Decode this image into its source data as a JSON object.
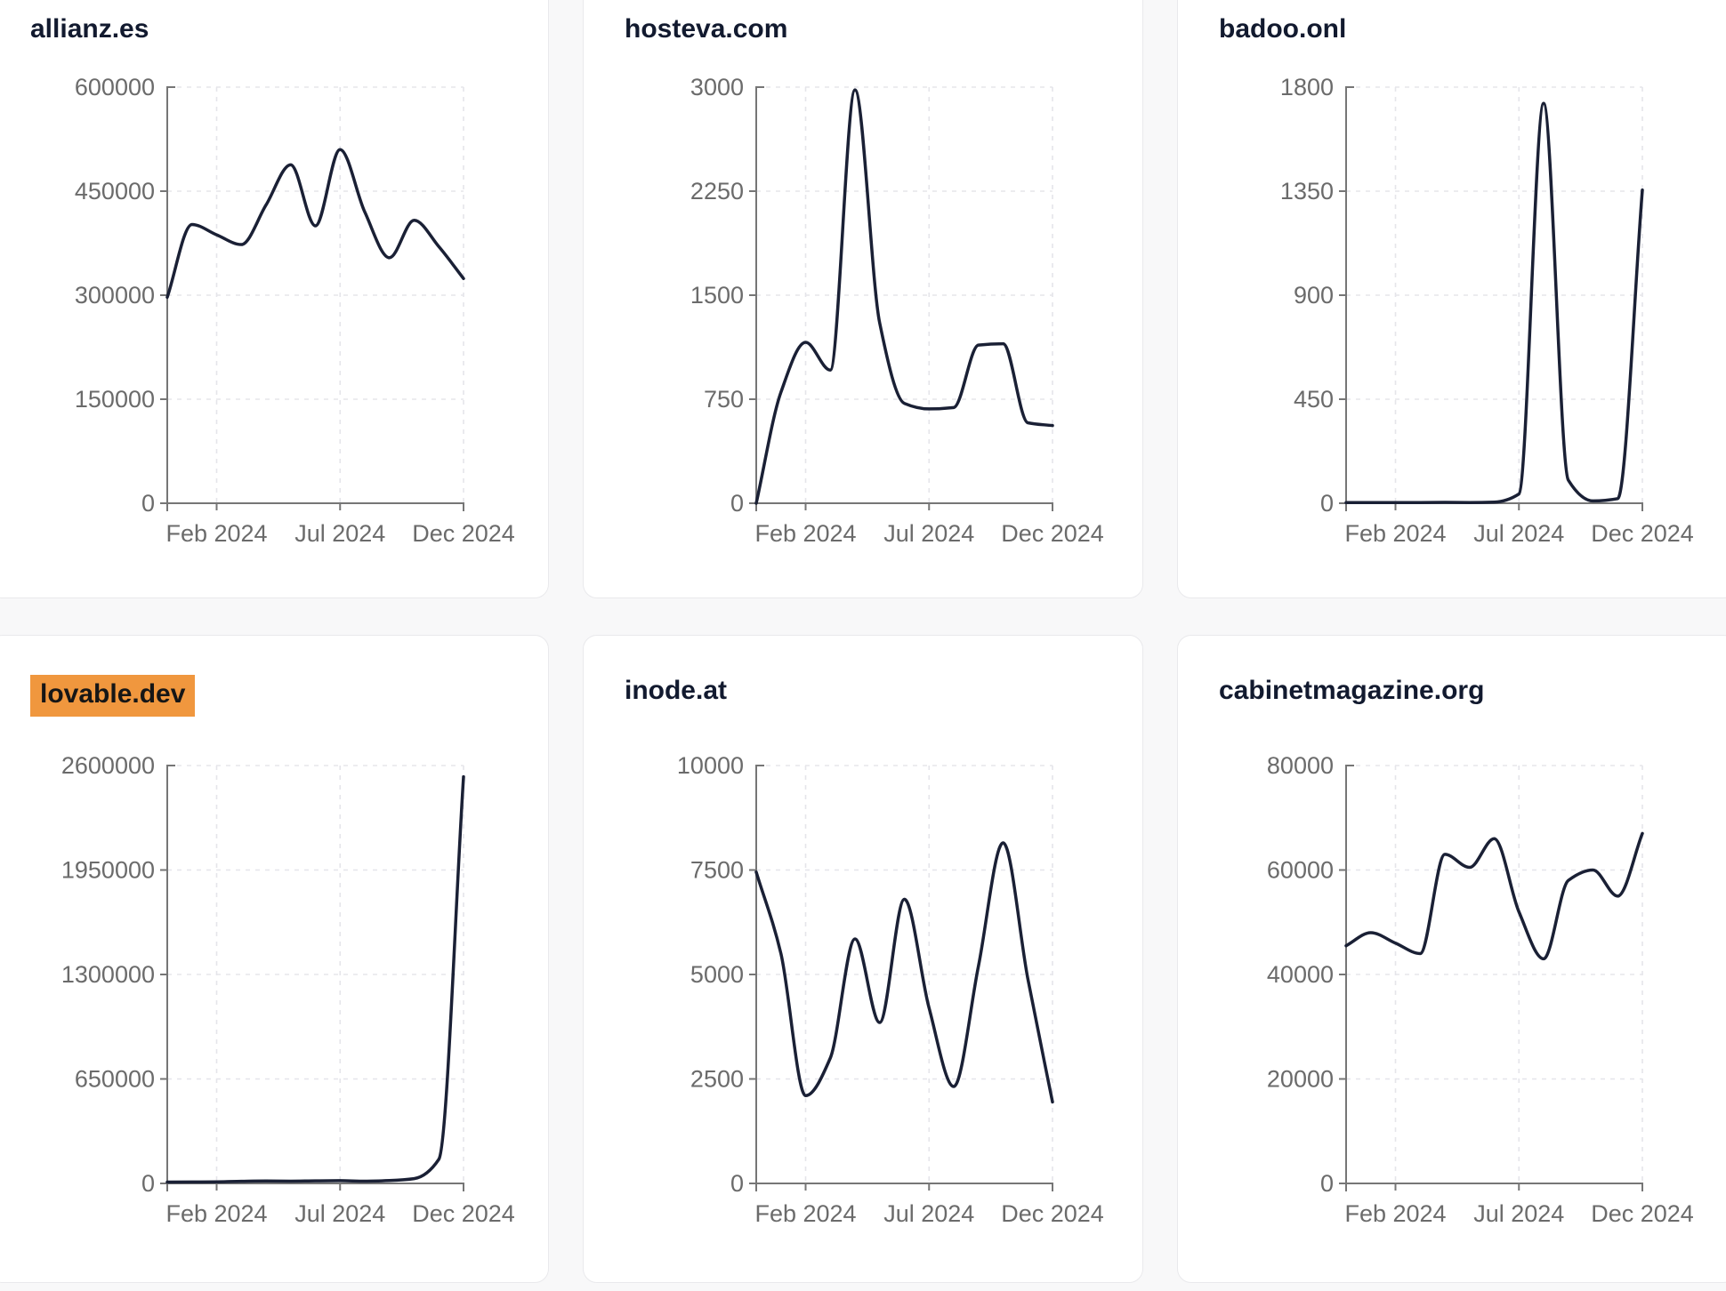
{
  "page": {
    "background": "#f8f8f9",
    "description_labels": {
      "x_axis_tick_labels": [
        "Feb 2024",
        "Jul 2024",
        "Dec 2024"
      ]
    }
  },
  "colors": {
    "line": "#1a2035",
    "axis": "#767676",
    "tick_label": "#6b6b6b",
    "grid": "#e5e5ea",
    "title": "#121a2f",
    "title_highlight": "#f0973e",
    "card_background": "#ffffff",
    "card_border": "#e9e9ec"
  },
  "chart_data": [
    {
      "type": "line",
      "title": "allianz.es",
      "title_highlighted": false,
      "x": [
        "2023-12",
        "2024-01",
        "2024-02",
        "2024-03",
        "2024-04",
        "2024-05",
        "2024-06",
        "2024-07",
        "2024-08",
        "2024-09",
        "2024-10",
        "2024-11",
        "2024-12"
      ],
      "values": [
        297000,
        402000,
        387000,
        373000,
        430000,
        488000,
        400000,
        510000,
        420000,
        354000,
        408000,
        370000,
        324000
      ],
      "ylim": [
        0,
        600000
      ],
      "y_tick_labels": [
        "600000",
        "450000",
        "300000",
        "150000",
        "0"
      ],
      "x_tick_labels": [
        "Feb 2024",
        "Jul 2024",
        "Dec 2024"
      ],
      "x_tick_positions": [
        0.16667,
        0.58333,
        1
      ],
      "grid": "dashed",
      "legend": false
    },
    {
      "type": "line",
      "title": "hosteva.com",
      "title_highlighted": false,
      "x": [
        "2023-12",
        "2024-01",
        "2024-02",
        "2024-03",
        "2024-04",
        "2024-05",
        "2024-06",
        "2024-07",
        "2024-08",
        "2024-09",
        "2024-10",
        "2024-11",
        "2024-12"
      ],
      "values": [
        0,
        800,
        1160,
        960,
        2980,
        1300,
        720,
        680,
        690,
        1140,
        1150,
        580,
        560
      ],
      "ylim": [
        0,
        3000
      ],
      "y_tick_labels": [
        "3000",
        "2250",
        "1500",
        "750",
        "0"
      ],
      "x_tick_labels": [
        "Feb 2024",
        "Jul 2024",
        "Dec 2024"
      ],
      "x_tick_positions": [
        0.16667,
        0.58333,
        1
      ],
      "grid": "dashed",
      "legend": false
    },
    {
      "type": "line",
      "title": "badoo.onl",
      "title_highlighted": false,
      "x": [
        "2023-12",
        "2024-01",
        "2024-02",
        "2024-03",
        "2024-04",
        "2024-05",
        "2024-06",
        "2024-07",
        "2024-08",
        "2024-09",
        "2024-10",
        "2024-11",
        "2024-12"
      ],
      "values": [
        3,
        3,
        3,
        3,
        4,
        3,
        5,
        40,
        1730,
        100,
        10,
        20,
        1355
      ],
      "ylim": [
        0,
        1800
      ],
      "y_tick_labels": [
        "1800",
        "1350",
        "900",
        "450",
        "0"
      ],
      "x_tick_labels": [
        "Feb 2024",
        "Jul 2024",
        "Dec 2024"
      ],
      "x_tick_positions": [
        0.16667,
        0.58333,
        1
      ],
      "grid": "dashed",
      "legend": false
    },
    {
      "type": "line",
      "title": "lovable.dev",
      "title_highlighted": true,
      "x": [
        "2023-12",
        "2024-01",
        "2024-02",
        "2024-03",
        "2024-04",
        "2024-05",
        "2024-06",
        "2024-07",
        "2024-08",
        "2024-09",
        "2024-10",
        "2024-11",
        "2024-12"
      ],
      "values": [
        8000,
        9000,
        10000,
        13000,
        15000,
        14000,
        16000,
        17000,
        14000,
        18000,
        30000,
        150000,
        2530000
      ],
      "ylim": [
        0,
        2600000
      ],
      "y_tick_labels": [
        "2600000",
        "1950000",
        "1300000",
        "650000",
        "0"
      ],
      "x_tick_labels": [
        "Feb 2024",
        "Jul 2024",
        "Dec 2024"
      ],
      "x_tick_positions": [
        0.16667,
        0.58333,
        1
      ],
      "grid": "dashed",
      "legend": false
    },
    {
      "type": "line",
      "title": "inode.at",
      "title_highlighted": false,
      "x": [
        "2023-12",
        "2024-01",
        "2024-02",
        "2024-03",
        "2024-04",
        "2024-05",
        "2024-06",
        "2024-07",
        "2024-08",
        "2024-09",
        "2024-10",
        "2024-11",
        "2024-12"
      ],
      "values": [
        7450,
        5500,
        2100,
        3000,
        5850,
        3850,
        6800,
        4200,
        2320,
        5200,
        8150,
        4900,
        1950
      ],
      "ylim": [
        0,
        10000
      ],
      "y_tick_labels": [
        "10000",
        "7500",
        "5000",
        "2500",
        "0"
      ],
      "x_tick_labels": [
        "Feb 2024",
        "Jul 2024",
        "Dec 2024"
      ],
      "x_tick_positions": [
        0.16667,
        0.58333,
        1
      ],
      "grid": "dashed",
      "legend": false
    },
    {
      "type": "line",
      "title": "cabinetmagazine.org",
      "title_highlighted": false,
      "x": [
        "2023-12",
        "2024-01",
        "2024-02",
        "2024-03",
        "2024-04",
        "2024-05",
        "2024-06",
        "2024-07",
        "2024-08",
        "2024-09",
        "2024-10",
        "2024-11",
        "2024-12"
      ],
      "values": [
        45500,
        48000,
        46000,
        44000,
        63000,
        60500,
        66000,
        52000,
        43000,
        58000,
        60000,
        55000,
        67000
      ],
      "ylim": [
        0,
        80000
      ],
      "y_tick_labels": [
        "80000",
        "60000",
        "40000",
        "20000",
        "0"
      ],
      "x_tick_labels": [
        "Feb 2024",
        "Jul 2024",
        "Dec 2024"
      ],
      "x_tick_positions": [
        0.16667,
        0.58333,
        1
      ],
      "grid": "dashed",
      "legend": false
    }
  ]
}
